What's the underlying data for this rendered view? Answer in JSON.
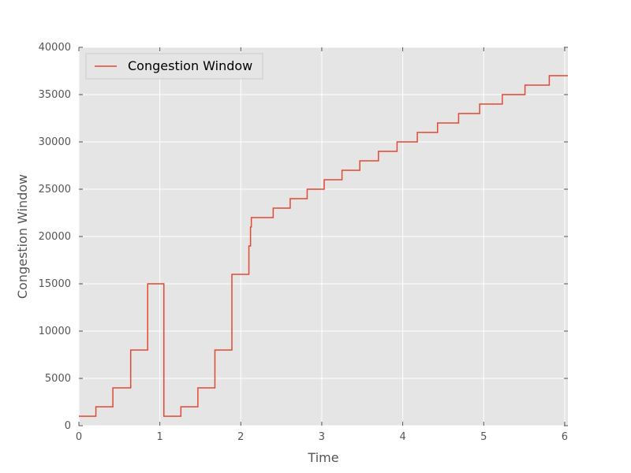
{
  "chart_data": {
    "type": "line",
    "title": "",
    "xlabel": "Time",
    "ylabel": "Congestion Window",
    "xlim": [
      0,
      6.04
    ],
    "ylim": [
      0,
      40000
    ],
    "x_ticks": [
      0,
      1,
      2,
      3,
      4,
      5,
      6
    ],
    "x_tick_labels": [
      "0",
      "1",
      "2",
      "3",
      "4",
      "5",
      "6"
    ],
    "y_ticks": [
      0,
      5000,
      10000,
      15000,
      20000,
      25000,
      30000,
      35000,
      40000
    ],
    "y_tick_labels": [
      "0",
      "5000",
      "10000",
      "15000",
      "20000",
      "25000",
      "30000",
      "35000",
      "40000"
    ],
    "grid": true,
    "legend_position": "top-left",
    "background_color": "#e5e5e5",
    "series": [
      {
        "name": "Congestion Window",
        "color": "#e24a33",
        "step": true,
        "x": [
          0,
          0.21,
          0.42,
          0.64,
          0.85,
          1.05,
          1.26,
          1.47,
          1.68,
          1.89,
          2.1,
          2.12,
          2.13,
          2.14,
          2.4,
          2.61,
          2.82,
          3.03,
          3.25,
          3.47,
          3.7,
          3.93,
          4.18,
          4.43,
          4.69,
          4.95,
          5.23,
          5.51,
          5.81,
          6.04
        ],
        "y": [
          1000,
          2000,
          4000,
          8000,
          15000,
          1000,
          2000,
          4000,
          8000,
          16000,
          19000,
          21000,
          22000,
          22000,
          23000,
          24000,
          25000,
          26000,
          27000,
          28000,
          29000,
          30000,
          31000,
          32000,
          33000,
          34000,
          35000,
          36000,
          37000,
          37000
        ]
      }
    ]
  }
}
